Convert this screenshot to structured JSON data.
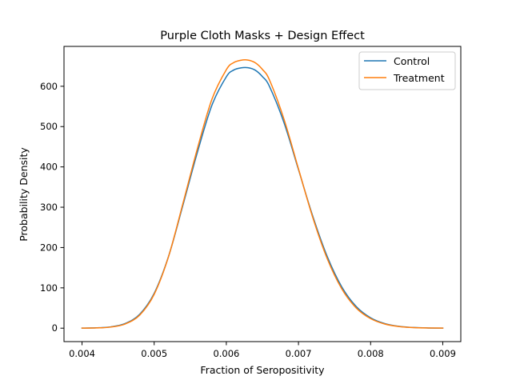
{
  "chart_data": {
    "type": "line",
    "title": "Purple Cloth Masks + Design Effect",
    "xlabel": "Fraction of Seropositivity",
    "ylabel": "Probability Density",
    "xlim": [
      0.00375,
      0.00925
    ],
    "ylim": [
      -33.3,
      698.9
    ],
    "grid": false,
    "legend_position": "top-right",
    "x_ticks": [
      0.004,
      0.005,
      0.006,
      0.007,
      0.008,
      0.009
    ],
    "x_tick_labels": [
      "0.004",
      "0.005",
      "0.006",
      "0.007",
      "0.008",
      "0.009"
    ],
    "y_ticks": [
      0,
      100,
      200,
      300,
      400,
      500,
      600
    ],
    "y_tick_labels": [
      "0",
      "100",
      "200",
      "300",
      "400",
      "500",
      "600"
    ],
    "x": [
      0.004,
      0.0042,
      0.0044,
      0.0046,
      0.0048,
      0.005,
      0.0052,
      0.0054,
      0.0056,
      0.0058,
      0.006,
      0.0061,
      0.0062,
      0.0063,
      0.0064,
      0.0065,
      0.0066,
      0.0068,
      0.007,
      0.0072,
      0.0074,
      0.0076,
      0.0078,
      0.008,
      0.0082,
      0.0084,
      0.0086,
      0.0088,
      0.009
    ],
    "series": [
      {
        "name": "Control",
        "color": "#1f77b4",
        "values": [
          0.2,
          0.8,
          3.3,
          11.7,
          34.7,
          86.4,
          178.6,
          306.1,
          436.8,
          552.8,
          623.5,
          640.0,
          645.5,
          646.0,
          640.0,
          624.0,
          598.9,
          509.3,
          393.4,
          276.7,
          177.1,
          102.4,
          53.8,
          25.8,
          11.2,
          4.4,
          1.6,
          0.5,
          0.1
        ]
      },
      {
        "name": "Treatment",
        "color": "#ff7f0e",
        "values": [
          0.1,
          0.6,
          2.8,
          10.6,
          32.6,
          84.0,
          178.1,
          310.3,
          446.1,
          567.6,
          641.1,
          658.5,
          664.5,
          665.0,
          658.5,
          641.9,
          614.8,
          518.0,
          395.3,
          273.5,
          171.8,
          97.6,
          50.2,
          23.7,
          10.1,
          3.9,
          1.4,
          0.5,
          0.1
        ]
      }
    ]
  }
}
